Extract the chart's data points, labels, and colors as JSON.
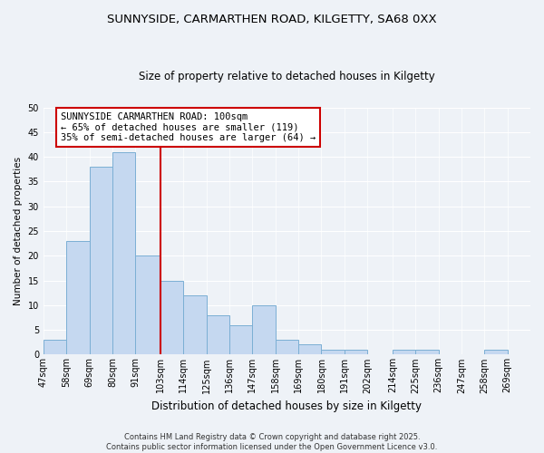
{
  "title_line1": "SUNNYSIDE, CARMARTHEN ROAD, KILGETTY, SA68 0XX",
  "title_line2": "Size of property relative to detached houses in Kilgetty",
  "xlabel": "Distribution of detached houses by size in Kilgetty",
  "ylabel": "Number of detached properties",
  "bin_labels": [
    "47sqm",
    "58sqm",
    "69sqm",
    "80sqm",
    "91sqm",
    "103sqm",
    "114sqm",
    "125sqm",
    "136sqm",
    "147sqm",
    "158sqm",
    "169sqm",
    "180sqm",
    "191sqm",
    "202sqm",
    "214sqm",
    "225sqm",
    "236sqm",
    "247sqm",
    "258sqm",
    "269sqm"
  ],
  "bin_edges": [
    47,
    58,
    69,
    80,
    91,
    103,
    114,
    125,
    136,
    147,
    158,
    169,
    180,
    191,
    202,
    214,
    225,
    236,
    247,
    258,
    269,
    280
  ],
  "counts": [
    3,
    23,
    38,
    41,
    20,
    15,
    12,
    8,
    6,
    10,
    3,
    2,
    1,
    1,
    0,
    1,
    1,
    0,
    0,
    1,
    0
  ],
  "bar_color": "#c5d8f0",
  "bar_edgecolor": "#7bafd4",
  "property_line_x": 103,
  "property_line_color": "#cc0000",
  "ylim": [
    0,
    50
  ],
  "yticks": [
    0,
    5,
    10,
    15,
    20,
    25,
    30,
    35,
    40,
    45,
    50
  ],
  "annotation_title": "SUNNYSIDE CARMARTHEN ROAD: 100sqm",
  "annotation_line1": "← 65% of detached houses are smaller (119)",
  "annotation_line2": "35% of semi-detached houses are larger (64) →",
  "footer_line1": "Contains HM Land Registry data © Crown copyright and database right 2025.",
  "footer_line2": "Contains public sector information licensed under the Open Government Licence v3.0.",
  "background_color": "#eef2f7",
  "grid_color": "#ffffff",
  "title_fontsize": 9.5,
  "subtitle_fontsize": 8.5,
  "xlabel_fontsize": 8.5,
  "ylabel_fontsize": 7.5,
  "tick_fontsize": 7.0,
  "footer_fontsize": 6.0,
  "ann_fontsize": 7.5
}
